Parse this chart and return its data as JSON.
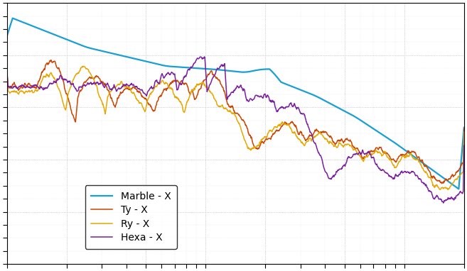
{
  "background_color": "#ffffff",
  "plot_bg_color": "#ffffff",
  "grid_color": "#cccccc",
  "spine_color": "#000000",
  "lines": [
    {
      "label": "Marble - X",
      "color": "#1a9fd4",
      "linewidth": 1.6
    },
    {
      "label": "Ty - X",
      "color": "#cc4400",
      "linewidth": 1.1
    },
    {
      "label": "Ry - X",
      "color": "#e6a800",
      "linewidth": 1.1
    },
    {
      "label": "Hexa - X",
      "color": "#7b1fa2",
      "linewidth": 1.1
    }
  ],
  "xlim": [
    1,
    200
  ],
  "ylim": [
    -80,
    20
  ],
  "figsize": [
    6.57,
    3.82
  ],
  "dpi": 100,
  "legend_fontsize": 10
}
